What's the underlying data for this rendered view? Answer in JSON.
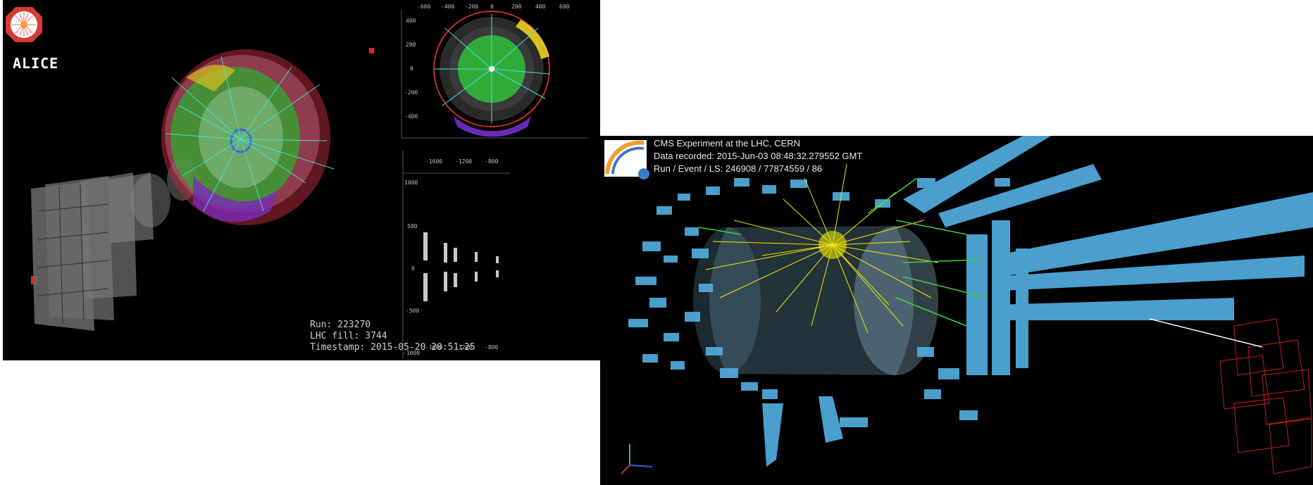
{
  "alice": {
    "logo_text": "ALICE",
    "info": {
      "run": "Run: 223270",
      "fill": "LHC fill: 3744",
      "timestamp": "Timestamp: 2015-05-20 20:51:25"
    },
    "top_view": {
      "x_ticks": [
        "-600",
        "-400",
        "-200",
        "0",
        "200",
        "400",
        "600"
      ],
      "y_ticks": [
        "400",
        "200",
        "0",
        "-200",
        "-400"
      ]
    },
    "side_view": {
      "x_ticks": [
        "-1600",
        "-1200",
        "-800"
      ],
      "y_ticks": [
        "1000",
        "500",
        "0",
        "-500",
        "-1000"
      ]
    }
  },
  "cms": {
    "header": {
      "line1": "CMS Experiment at the LHC, CERN",
      "line2": "Data recorded: 2015-Jun-03 08:48:32.279552 GMT",
      "line3": "Run / Event / LS: 246908 / 77874559 / 86"
    }
  },
  "colors": {
    "background": "#000000",
    "cms_blocks": "#4fa8d8",
    "tracks_yellow": "#f2e600",
    "tracks_cyan": "#3fe6e0",
    "tpc_green": "#3ecb3e",
    "alice_red": "#d0302a"
  }
}
